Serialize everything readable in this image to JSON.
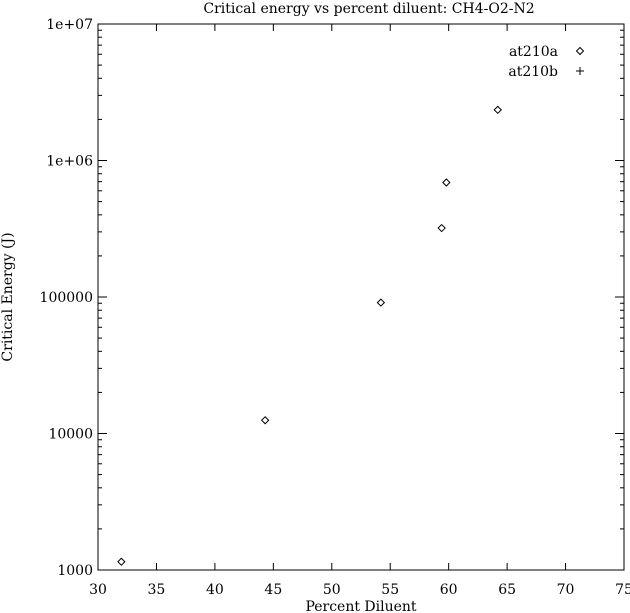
{
  "chart_data": {
    "type": "scatter",
    "title": "Critical energy vs percent diluent: CH4-O2-N2",
    "xlabel": "Percent Diluent",
    "ylabel": "Critical Energy (J)",
    "xlim": [
      30,
      75
    ],
    "ylim": [
      1000,
      10000000
    ],
    "yscale": "log",
    "grid": false,
    "legend_position": "top-right",
    "x_ticks": [
      30,
      35,
      40,
      45,
      50,
      55,
      60,
      65,
      70,
      75
    ],
    "x_tick_labels": [
      "30",
      "35",
      "40",
      "45",
      "50",
      "55",
      "60",
      "65",
      "70",
      "75"
    ],
    "y_ticks": [
      1000,
      10000,
      100000,
      1000000,
      10000000
    ],
    "y_tick_labels": [
      "1000",
      "10000",
      "100000",
      "1e+06",
      "1e+07"
    ],
    "series": [
      {
        "name": "at210a",
        "marker": "diamond",
        "points": [
          {
            "x": 32.0,
            "y": 1150
          },
          {
            "x": 44.3,
            "y": 12500
          },
          {
            "x": 54.2,
            "y": 91000
          },
          {
            "x": 59.4,
            "y": 320000
          },
          {
            "x": 59.8,
            "y": 690000
          },
          {
            "x": 64.2,
            "y": 2350000
          }
        ]
      },
      {
        "name": "at210b",
        "marker": "plus",
        "points": []
      }
    ]
  }
}
